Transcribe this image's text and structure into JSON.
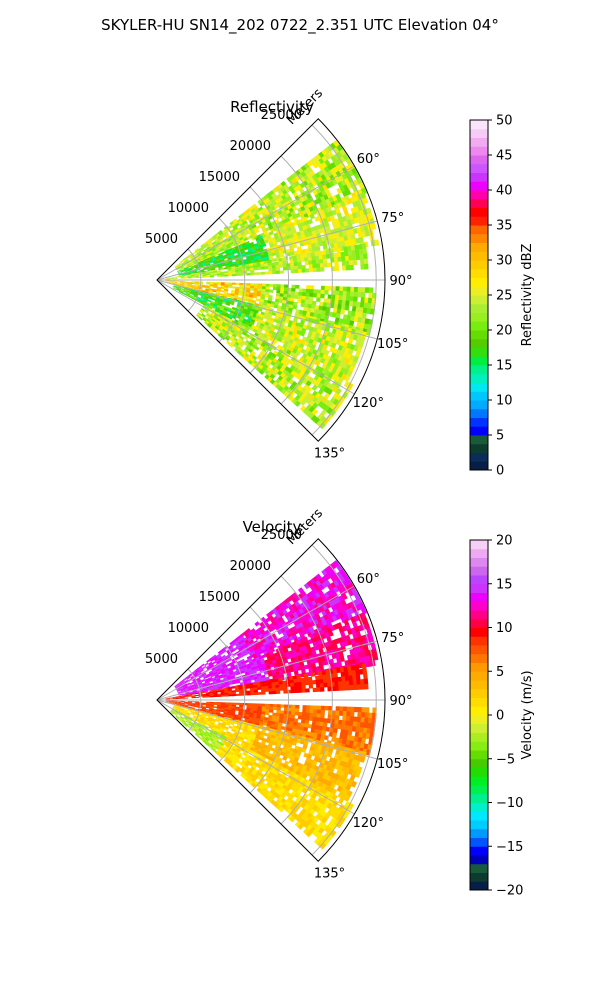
{
  "title": "SKYLER-HU  SN14_202  0722_2.351 UTC Elevation 04°",
  "colors": {
    "edge": "#000000",
    "grid": "#b0b0b0"
  },
  "chart_data": [
    {
      "type": "heatmap",
      "title": "Reflectivity",
      "radial_label": "Meters",
      "range_rings": [
        5000,
        10000,
        15000,
        20000,
        25000
      ],
      "range_ring_labels": [
        "5000",
        "10000",
        "15000",
        "20000",
        "25000"
      ],
      "azimuth_ticks": [
        60,
        75,
        90,
        105,
        120,
        135
      ],
      "azimuth_tick_labels": [
        "60°",
        "75°",
        "90°",
        "105°",
        "120°",
        "135°"
      ],
      "azimuth_range": [
        45,
        135
      ],
      "max_range": 26000,
      "grid": true,
      "colorbar": {
        "label": "Reflectivity dBZ",
        "min": 0,
        "max": 50,
        "ticks": [
          0,
          5,
          10,
          15,
          20,
          25,
          30,
          35,
          40,
          45,
          50
        ],
        "tick_labels": [
          "0",
          "5",
          "10",
          "15",
          "20",
          "25",
          "30",
          "35",
          "40",
          "45",
          "50"
        ],
        "levels": [
          {
            "min": 0,
            "color": "#071e46"
          },
          {
            "min": 1.25,
            "color": "#0a2c58"
          },
          {
            "min": 2.5,
            "color": "#0d3b2e"
          },
          {
            "min": 3.75,
            "color": "#185a3a"
          },
          {
            "min": 5,
            "color": "#0000ff"
          },
          {
            "min": 6.25,
            "color": "#0033ff"
          },
          {
            "min": 7.5,
            "color": "#0077ff"
          },
          {
            "min": 8.75,
            "color": "#00aaff"
          },
          {
            "min": 10,
            "color": "#00c8ff"
          },
          {
            "min": 11.25,
            "color": "#00e8f0"
          },
          {
            "min": 12.5,
            "color": "#00f0c0"
          },
          {
            "min": 13.75,
            "color": "#00f08a"
          },
          {
            "min": 15,
            "color": "#00ee40"
          },
          {
            "min": 16.25,
            "color": "#33dd10"
          },
          {
            "min": 17.5,
            "color": "#55cc00"
          },
          {
            "min": 18.75,
            "color": "#66dd00"
          },
          {
            "min": 20,
            "color": "#77ee10"
          },
          {
            "min": 21.25,
            "color": "#99ee22"
          },
          {
            "min": 22.5,
            "color": "#aaee33"
          },
          {
            "min": 23.75,
            "color": "#ccee33"
          },
          {
            "min": 25,
            "color": "#eeee22"
          },
          {
            "min": 26.25,
            "color": "#ffee00"
          },
          {
            "min": 27.5,
            "color": "#ffdd00"
          },
          {
            "min": 28.75,
            "color": "#ffcc00"
          },
          {
            "min": 30,
            "color": "#ffbb00"
          },
          {
            "min": 31.25,
            "color": "#ffaa00"
          },
          {
            "min": 32.5,
            "color": "#ff8800"
          },
          {
            "min": 33.75,
            "color": "#ff6600"
          },
          {
            "min": 35,
            "color": "#ff2200"
          },
          {
            "min": 36.25,
            "color": "#ff0000"
          },
          {
            "min": 37.5,
            "color": "#ff0055"
          },
          {
            "min": 38.75,
            "color": "#ff00aa"
          },
          {
            "min": 40,
            "color": "#ee00ff"
          },
          {
            "min": 41.25,
            "color": "#cc33ff"
          },
          {
            "min": 42.5,
            "color": "#cc55ff"
          },
          {
            "min": 43.75,
            "color": "#dd66ee"
          },
          {
            "min": 45,
            "color": "#ee88ee"
          },
          {
            "min": 46.25,
            "color": "#f2aaf2"
          },
          {
            "min": 47.5,
            "color": "#f6ccf6"
          },
          {
            "min": 48.75,
            "color": "#fae4fa"
          }
        ]
      },
      "field_regions": [
        {
          "az": [
            52,
            67
          ],
          "r": [
            2500,
            12000
          ],
          "value": [
            20,
            27
          ]
        },
        {
          "az": [
            52,
            67
          ],
          "r": [
            12000,
            25500
          ],
          "value": [
            19,
            28
          ]
        },
        {
          "az": [
            67,
            80
          ],
          "r": [
            2500,
            13000
          ],
          "value": [
            14,
            20
          ]
        },
        {
          "az": [
            67,
            80
          ],
          "r": [
            13000,
            25500
          ],
          "value": [
            22,
            28
          ]
        },
        {
          "az": [
            80,
            86
          ],
          "r": [
            1000,
            24000
          ],
          "value": [
            20,
            27
          ]
        },
        {
          "az": [
            92,
            104
          ],
          "r": [
            1000,
            12000
          ],
          "value": [
            24,
            33
          ]
        },
        {
          "az": [
            92,
            104
          ],
          "r": [
            12000,
            25000
          ],
          "value": [
            18,
            27
          ]
        },
        {
          "az": [
            104,
            118
          ],
          "r": [
            2000,
            12000
          ],
          "value": [
            14,
            22
          ]
        },
        {
          "az": [
            104,
            118
          ],
          "r": [
            12000,
            24500
          ],
          "value": [
            20,
            28
          ]
        },
        {
          "az": [
            118,
            131
          ],
          "r": [
            6000,
            25000
          ],
          "value": [
            19,
            28
          ]
        }
      ]
    },
    {
      "type": "heatmap",
      "title": "Velocity",
      "radial_label": "Meters",
      "range_rings": [
        5000,
        10000,
        15000,
        20000,
        25000
      ],
      "range_ring_labels": [
        "5000",
        "10000",
        "15000",
        "20000",
        "25000"
      ],
      "azimuth_ticks": [
        60,
        75,
        90,
        105,
        120,
        135
      ],
      "azimuth_tick_labels": [
        "60°",
        "75°",
        "90°",
        "105°",
        "120°",
        "135°"
      ],
      "azimuth_range": [
        45,
        135
      ],
      "max_range": 26000,
      "grid": true,
      "colorbar": {
        "label": "Velocity (m/s)",
        "min": -20,
        "max": 20,
        "ticks": [
          -20,
          -15,
          -10,
          -5,
          0,
          5,
          10,
          15,
          20
        ],
        "tick_labels": [
          "−20",
          "−15",
          "−10",
          "−5",
          "0",
          "5",
          "10",
          "15",
          "20"
        ],
        "levels": [
          {
            "min": -20,
            "color": "#071e46"
          },
          {
            "min": -19,
            "color": "#0d3b2e"
          },
          {
            "min": -18,
            "color": "#185a3a"
          },
          {
            "min": -17,
            "color": "#0000bb"
          },
          {
            "min": -16,
            "color": "#0000ff"
          },
          {
            "min": -15,
            "color": "#0055ff"
          },
          {
            "min": -14,
            "color": "#0099ff"
          },
          {
            "min": -13,
            "color": "#00ccff"
          },
          {
            "min": -12,
            "color": "#00e8ff"
          },
          {
            "min": -11,
            "color": "#00f0cc"
          },
          {
            "min": -10,
            "color": "#00f090"
          },
          {
            "min": -9,
            "color": "#00f050"
          },
          {
            "min": -8,
            "color": "#00ee22"
          },
          {
            "min": -7,
            "color": "#22dd00"
          },
          {
            "min": -6,
            "color": "#44cc00"
          },
          {
            "min": -5,
            "color": "#66dd00"
          },
          {
            "min": -4,
            "color": "#88ee11"
          },
          {
            "min": -3,
            "color": "#aaee22"
          },
          {
            "min": -2,
            "color": "#ccee33"
          },
          {
            "min": -1,
            "color": "#eeee22"
          },
          {
            "min": 0,
            "color": "#ffee00"
          },
          {
            "min": 1,
            "color": "#ffdd00"
          },
          {
            "min": 2,
            "color": "#ffcc00"
          },
          {
            "min": 3,
            "color": "#ffbb00"
          },
          {
            "min": 4,
            "color": "#ffaa00"
          },
          {
            "min": 5,
            "color": "#ff9900"
          },
          {
            "min": 6,
            "color": "#ff7700"
          },
          {
            "min": 7,
            "color": "#ff5500"
          },
          {
            "min": 8,
            "color": "#ff3300"
          },
          {
            "min": 9,
            "color": "#ff0000"
          },
          {
            "min": 10,
            "color": "#ff0044"
          },
          {
            "min": 11,
            "color": "#ff0088"
          },
          {
            "min": 12,
            "color": "#ff00cc"
          },
          {
            "min": 13,
            "color": "#ee00ff"
          },
          {
            "min": 14,
            "color": "#cc33ff"
          },
          {
            "min": 15,
            "color": "#bb44ff"
          },
          {
            "min": 16,
            "color": "#cc66ee"
          },
          {
            "min": 17,
            "color": "#dd88ee"
          },
          {
            "min": 18,
            "color": "#eeaaf0"
          },
          {
            "min": 19,
            "color": "#f6d0f6"
          }
        ]
      },
      "field_regions": [
        {
          "az": [
            52,
            67
          ],
          "r": [
            2500,
            12000
          ],
          "value": [
            13,
            15
          ]
        },
        {
          "az": [
            52,
            67
          ],
          "r": [
            12000,
            25500
          ],
          "value": [
            11,
            15
          ]
        },
        {
          "az": [
            67,
            80
          ],
          "r": [
            2500,
            13000
          ],
          "value": [
            13,
            15
          ]
        },
        {
          "az": [
            67,
            80
          ],
          "r": [
            13000,
            25500
          ],
          "value": [
            10,
            13
          ]
        },
        {
          "az": [
            80,
            86
          ],
          "r": [
            1000,
            24000
          ],
          "value": [
            8,
            10
          ]
        },
        {
          "az": [
            92,
            104
          ],
          "r": [
            1000,
            12000
          ],
          "value": [
            7,
            9
          ]
        },
        {
          "az": [
            92,
            104
          ],
          "r": [
            12000,
            25000
          ],
          "value": [
            5,
            8
          ]
        },
        {
          "az": [
            104,
            118
          ],
          "r": [
            2000,
            12000
          ],
          "value": [
            0,
            3
          ]
        },
        {
          "az": [
            104,
            118
          ],
          "r": [
            12000,
            24500
          ],
          "value": [
            2,
            5
          ]
        },
        {
          "az": [
            118,
            131
          ],
          "r": [
            2000,
            9000
          ],
          "value": [
            -4,
            -1
          ]
        },
        {
          "az": [
            118,
            131
          ],
          "r": [
            9000,
            25000
          ],
          "value": [
            0,
            3
          ]
        }
      ]
    }
  ]
}
